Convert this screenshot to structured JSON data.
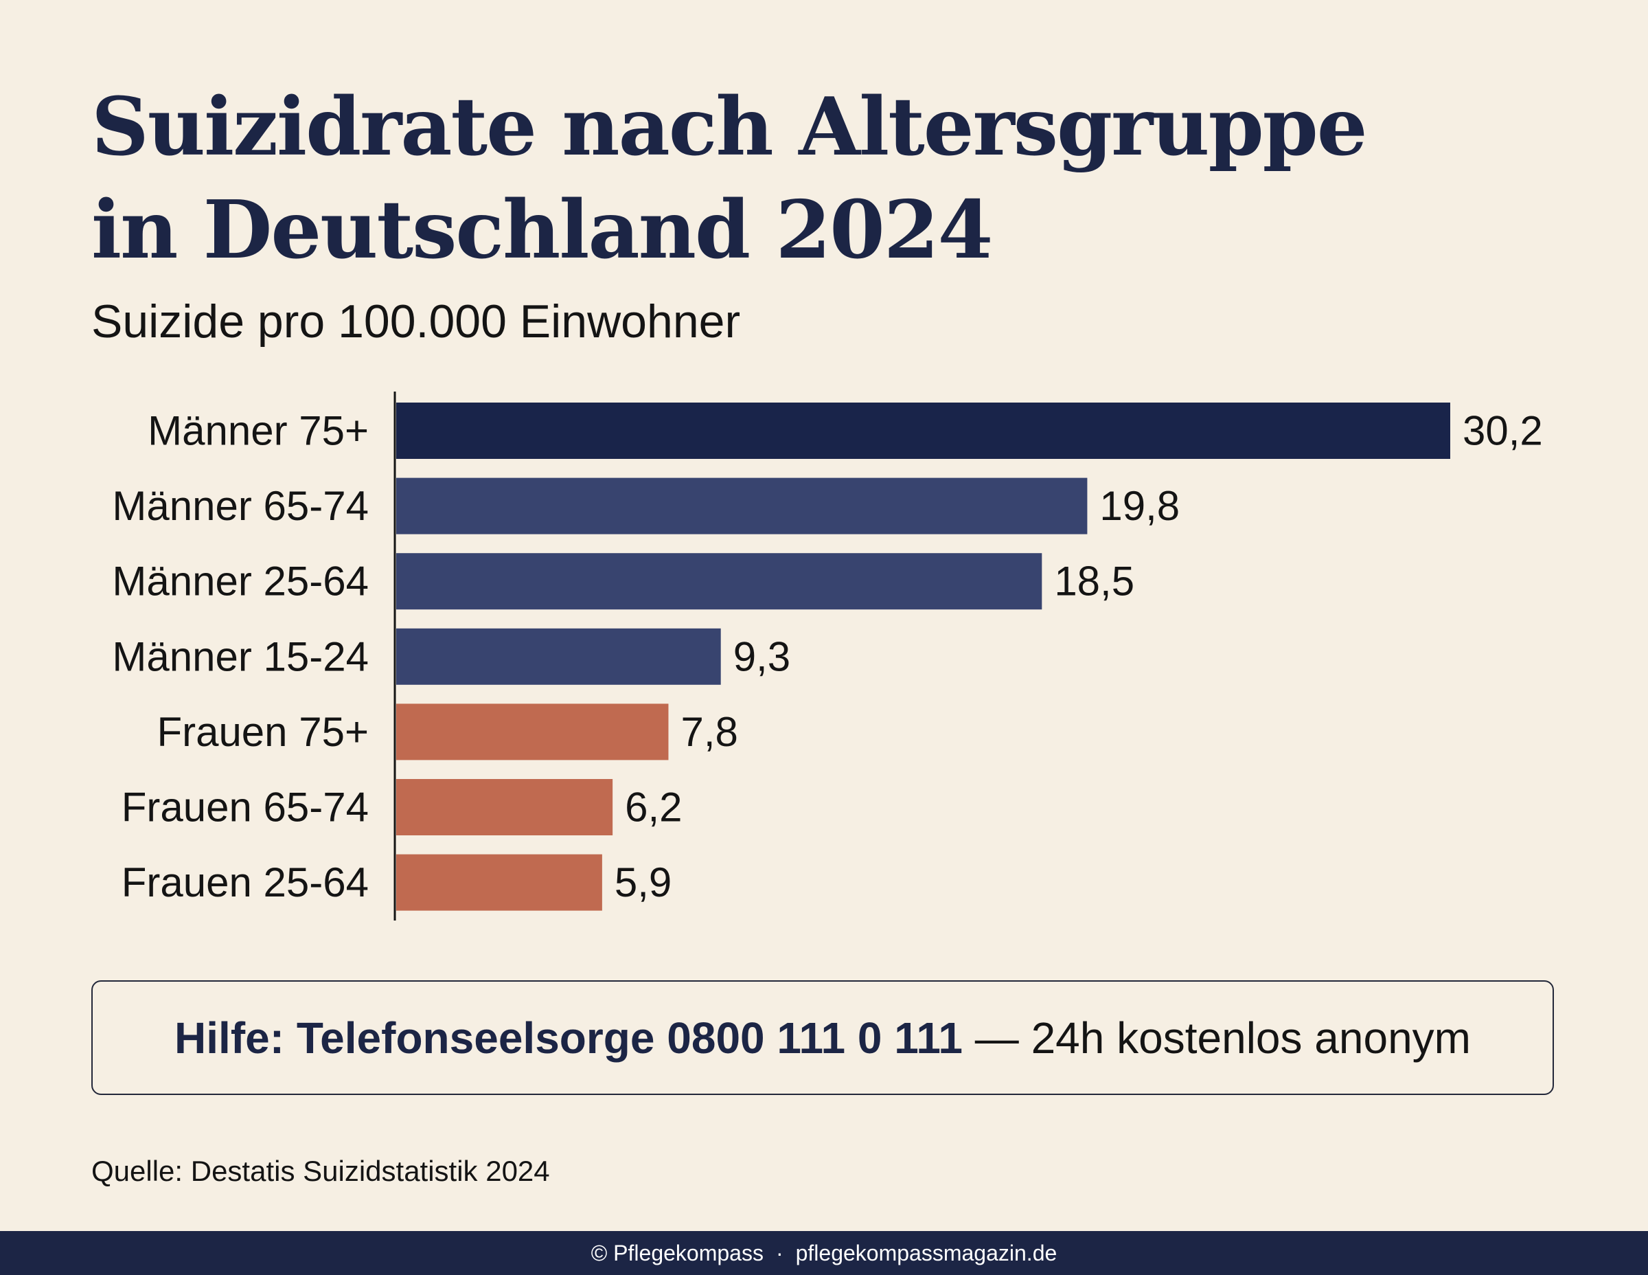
{
  "title_line1": "Suizidrate nach Altersgruppe",
  "title_line2": "in Deutschland 2024",
  "subtitle": "Suizide pro 100.000 Einwohner",
  "help": {
    "strong": "Hilfe: Telefonseelsorge 0800 111 0 111",
    "rest": "— 24h kostenlos anonym"
  },
  "source": "Quelle: Destatis Suizidstatistik 2024",
  "footer": {
    "brand": "© Pflegekompass",
    "separator": "·",
    "url": "pflegekompassmagazin.de"
  },
  "colors": {
    "men_oldest": "#19244a",
    "men": "#38446f",
    "women": "#c06a50",
    "axis": "#141414",
    "label": "#141414"
  },
  "chart_data": {
    "type": "bar",
    "orientation": "horizontal",
    "title": "Suizidrate nach Altersgruppe in Deutschland 2024",
    "subtitle": "Suizide pro 100.000 Einwohner",
    "xlabel": "",
    "ylabel": "",
    "grid": false,
    "legend": "none",
    "xlim": [
      0,
      30.2
    ],
    "categories": [
      "Männer 75+",
      "Männer 65-74",
      "Männer 25-64",
      "Männer 15-24",
      "Frauen 75+",
      "Frauen 65-74",
      "Frauen 25-64"
    ],
    "values": [
      30.2,
      19.8,
      18.5,
      9.3,
      7.8,
      6.2,
      5.9
    ],
    "value_labels": [
      "30,2",
      "19,8",
      "18,5",
      "9,3",
      "7,8",
      "6,2",
      "5,9"
    ],
    "bar_color_keys": [
      "men_oldest",
      "men",
      "men",
      "men",
      "women",
      "women",
      "women"
    ]
  }
}
